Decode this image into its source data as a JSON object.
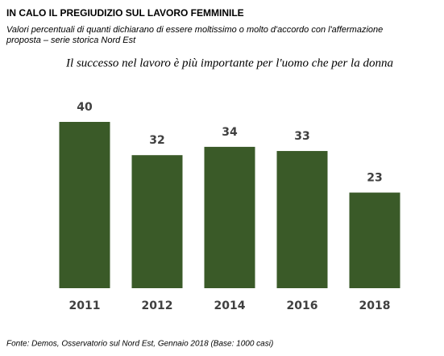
{
  "header": {
    "title": "IN CALO IL PREGIUDIZIO SUL LAVORO FEMMINILE",
    "subtitle": [
      "Valori percentuali di quanti dichiarano di essere moltissimo o molto d'accordo con l'affermazione",
      "proposta – serie storica Nord Est"
    ]
  },
  "chart_data": {
    "type": "bar",
    "title": "Il successo nel lavoro è più importante per l'uomo che per la donna",
    "categories": [
      "2011",
      "2012",
      "2014",
      "2016",
      "2018"
    ],
    "values": [
      40,
      32,
      34,
      33,
      23
    ],
    "color": "#3a5a28"
  },
  "source": "Fonte: Demos, Osservatorio sul Nord Est, Gennaio  2018 (Base: 1000 casi)"
}
